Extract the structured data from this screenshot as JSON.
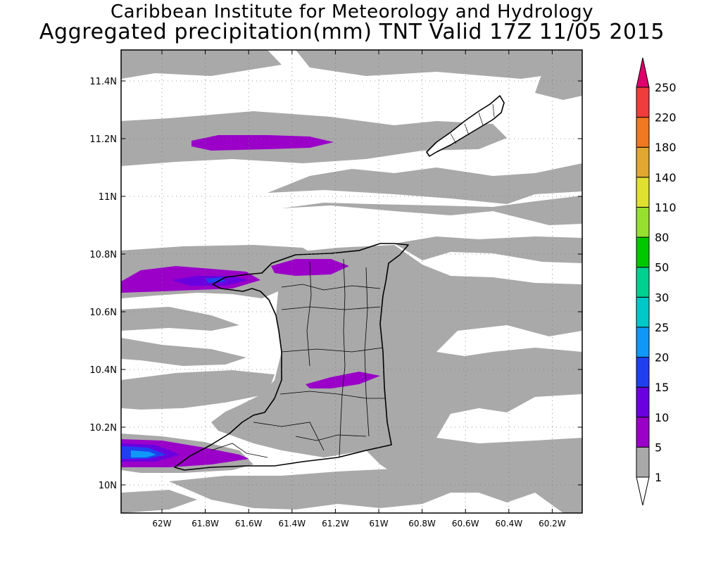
{
  "title": "Caribbean Institute for Meteorology and Hydrology",
  "subtitle": "Aggregated precipitation(mm) TNT Valid 17Z 11/05 2015",
  "map": {
    "lat_ticks": [
      "10N",
      "10.2N",
      "10.4N",
      "10.6N",
      "10.8N",
      "11N",
      "11.2N",
      "11.4N"
    ],
    "lon_ticks": [
      "62W",
      "61.8W",
      "61.6W",
      "61.4W",
      "61.2W",
      "61W",
      "60.8W",
      "60.6W",
      "60.4W",
      "60.2W"
    ],
    "grid": true,
    "land_color": "#a9a9a9",
    "sea_color": "#ffffff"
  },
  "legend": {
    "labels": [
      "1",
      "5",
      "10",
      "15",
      "20",
      "25",
      "30",
      "50",
      "80",
      "110",
      "140",
      "180",
      "220",
      "250"
    ],
    "colors": [
      "#ffffff",
      "#a9a9a9",
      "#9a00c8",
      "#6a00e0",
      "#2040f0",
      "#1098f8",
      "#00c8c8",
      "#00d090",
      "#00c800",
      "#98e030",
      "#e0e030",
      "#e0a830",
      "#f07820",
      "#f03c3c",
      "#e0006c"
    ]
  }
}
